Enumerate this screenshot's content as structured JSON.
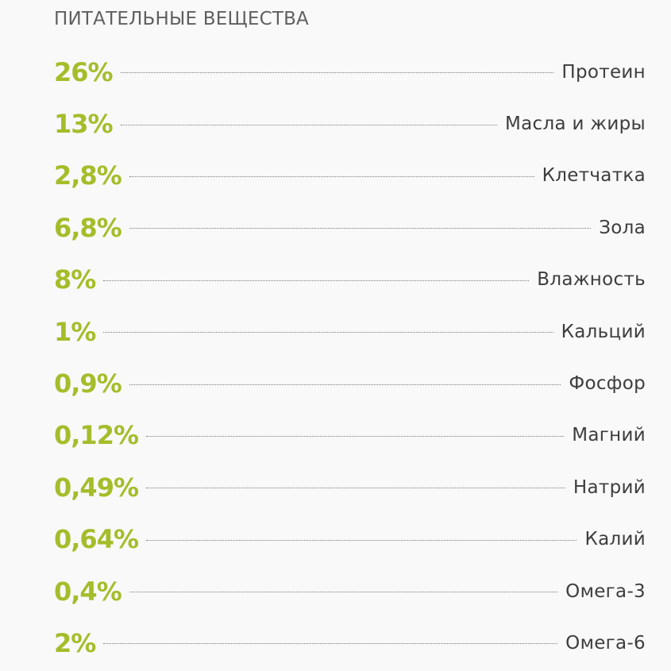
{
  "heading": "ПИТАТЕЛЬНЫЕ ВЕЩЕСТВА",
  "colors": {
    "accent": "#a4bd2a",
    "background": "#f9f9f9",
    "heading": "#5f5f5f",
    "label": "#3d3d3d"
  },
  "nutrients": [
    {
      "value": "26%",
      "label": "Протеин"
    },
    {
      "value": "13%",
      "label": "Масла и жиры"
    },
    {
      "value": "2,8%",
      "label": "Клетчатка"
    },
    {
      "value": "6,8%",
      "label": "Зола"
    },
    {
      "value": "8%",
      "label": "Влажность"
    },
    {
      "value": "1%",
      "label": "Кальций"
    },
    {
      "value": "0,9%",
      "label": "Фосфор"
    },
    {
      "value": "0,12%",
      "label": "Магний"
    },
    {
      "value": "0,49%",
      "label": "Натрий"
    },
    {
      "value": "0,64%",
      "label": "Калий"
    },
    {
      "value": "0,4%",
      "label": "Омега-3"
    },
    {
      "value": "2%",
      "label": "Омега-6"
    }
  ]
}
